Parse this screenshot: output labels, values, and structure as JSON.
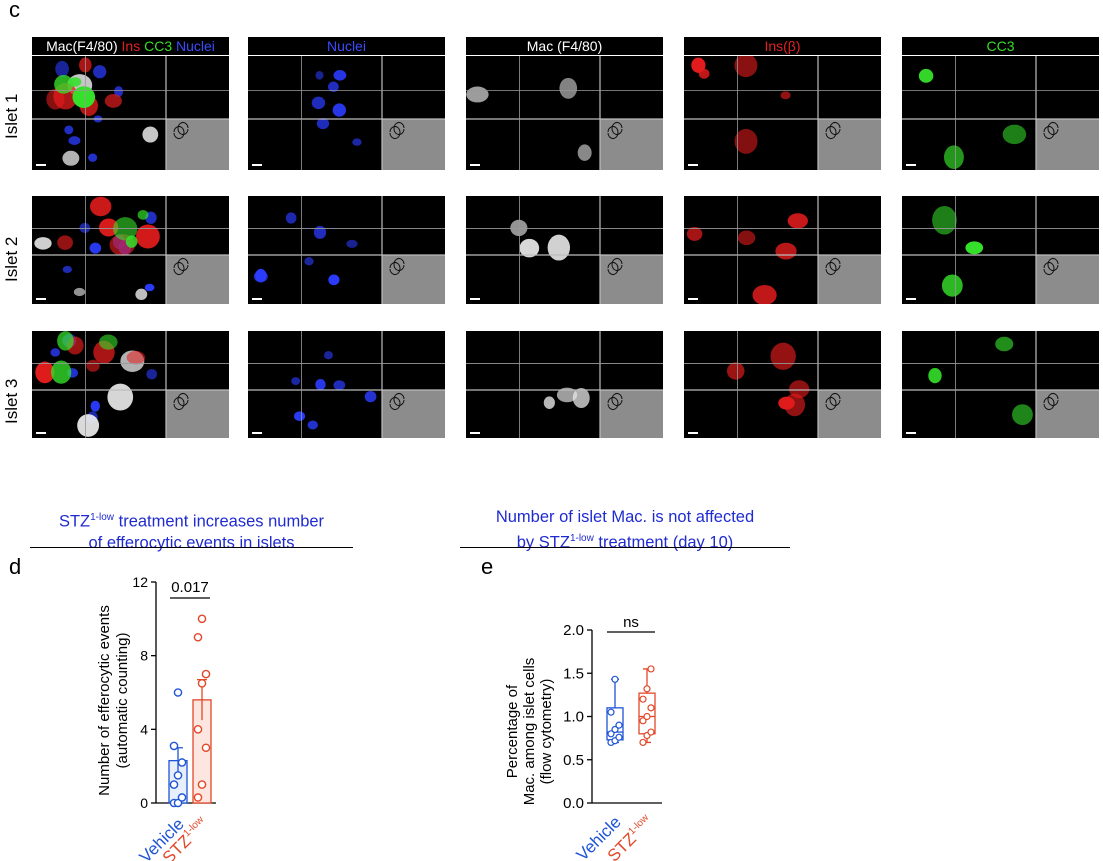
{
  "panels": {
    "c": "c",
    "d": "d",
    "e": "e"
  },
  "microscopy": {
    "columns": [
      {
        "label_parts": [
          {
            "text": "Mac(F4/80) ",
            "color": "#ffffff"
          },
          {
            "text": "Ins ",
            "color": "#e02020"
          },
          {
            "text": "CC3 ",
            "color": "#3adc2a"
          },
          {
            "text": "Nuclei",
            "color": "#3b4bff"
          }
        ],
        "channel": "merge"
      },
      {
        "label_parts": [
          {
            "text": "Nuclei",
            "color": "#3b4bff"
          }
        ],
        "channel": "nuclei"
      },
      {
        "label_parts": [
          {
            "text": "Mac (F4/80)",
            "color": "#ffffff"
          }
        ],
        "channel": "mac"
      },
      {
        "label_parts": [
          {
            "text": "Ins(β)",
            "color": "#e02020"
          }
        ],
        "channel": "ins"
      },
      {
        "label_parts": [
          {
            "text": "CC3",
            "color": "#3adc2a"
          }
        ],
        "channel": "cc3"
      }
    ],
    "rows": [
      "Islet 1",
      "Islet 2",
      "Islet 3"
    ]
  },
  "captions": {
    "d": {
      "pre": "STZ",
      "sup": "1-low",
      "post": " treatment increases number",
      "line2": "of efferocytic events in islets"
    },
    "e": {
      "line1": "Number of islet Mac. is not affected",
      "pre": "by  STZ",
      "sup": "1-low",
      "post": " treatment (day 10)"
    }
  },
  "chart_data": [
    {
      "type": "bar",
      "panel": "d",
      "ylabel": [
        "Number of efferocytic events",
        "(automatic counting)"
      ],
      "ylim": [
        0,
        12
      ],
      "yticks": [
        0,
        4,
        8,
        12
      ],
      "categories": [
        {
          "name": "Vehicle",
          "sup": "",
          "color": "#1f55d6"
        },
        {
          "name": "STZ",
          "sup": "1-low",
          "color": "#e2482a"
        }
      ],
      "bars": [
        {
          "mean": 2.3,
          "sem_low": 1.6,
          "sem_high": 3.0
        },
        {
          "mean": 5.6,
          "sem_low": 4.5,
          "sem_high": 6.7
        }
      ],
      "points": [
        [
          0,
          0,
          0.3,
          1,
          1.5,
          2.2,
          3.1,
          6
        ],
        [
          0.3,
          1,
          3,
          4,
          6.5,
          7,
          9,
          10
        ]
      ],
      "significance": "0.017"
    },
    {
      "type": "box",
      "panel": "e",
      "ylabel": [
        "Percentage of",
        "Mac. among islet cells",
        "(flow cytometry)"
      ],
      "ylim": [
        0,
        2.0
      ],
      "yticks": [
        "0.0",
        "0.5",
        "1.0",
        "1.5",
        "2.0"
      ],
      "categories": [
        {
          "name": "Vehicle",
          "sup": "",
          "color": "#1f55d6"
        },
        {
          "name": "STZ",
          "sup": "1-low",
          "color": "#e2482a"
        }
      ],
      "boxes": [
        {
          "min": 0.7,
          "q1": 0.73,
          "median": 0.82,
          "q3": 1.1,
          "max": 1.43
        },
        {
          "min": 0.7,
          "q1": 0.8,
          "median": 1.0,
          "q3": 1.27,
          "max": 1.55
        }
      ],
      "points": [
        [
          0.7,
          0.72,
          0.76,
          0.8,
          0.85,
          0.9,
          1.05,
          1.43
        ],
        [
          0.7,
          0.78,
          0.82,
          0.95,
          1.0,
          1.1,
          1.2,
          1.32,
          1.55
        ]
      ],
      "significance": "ns"
    }
  ]
}
